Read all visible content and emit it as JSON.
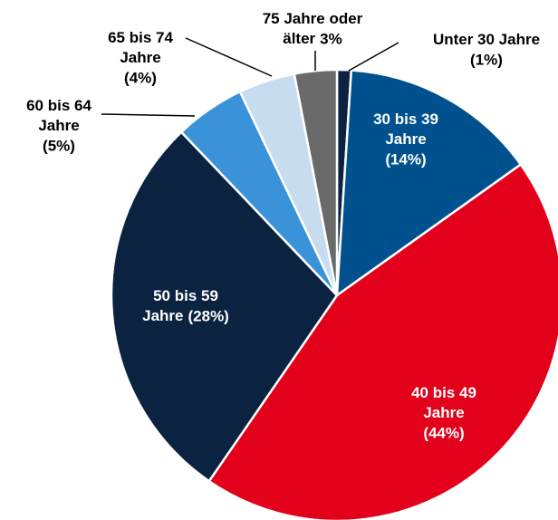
{
  "chart_data": {
    "type": "pie",
    "categories": [
      "Unter 30 Jahre",
      "30 bis 39 Jahre",
      "40 bis 49 Jahre",
      "50 bis 59 Jahre",
      "60 bis 64 Jahre",
      "65 bis 74 Jahre",
      "75 Jahre oder älter"
    ],
    "values": [
      1,
      14,
      44,
      28,
      5,
      4,
      3
    ],
    "value_labels": [
      "(1%)",
      "(14%)",
      "(44%)",
      "(28%)",
      "(5%)",
      "(4%)",
      "3%"
    ],
    "colors": [
      "#0b2240",
      "#00518e",
      "#e2001a",
      "#0b2240",
      "#3a93d9",
      "#c7dcef",
      "#6a6a6a"
    ]
  }
}
